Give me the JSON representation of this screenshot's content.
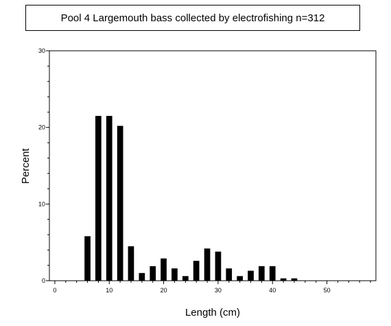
{
  "chart_data": {
    "type": "bar",
    "title": "Pool 4 Largemouth bass collected by electrofishing n=312",
    "xlabel": "Length (cm)",
    "ylabel": "Percent",
    "xlim": [
      -1,
      59
    ],
    "ylim": [
      0,
      30
    ],
    "x_ticks": [
      "0",
      "10",
      "20",
      "30",
      "40",
      "50"
    ],
    "y_ticks": [
      "0",
      "10",
      "20",
      "30"
    ],
    "x": [
      6,
      8,
      10,
      12,
      14,
      16,
      18,
      20,
      22,
      24,
      26,
      28,
      30,
      32,
      34,
      36,
      38,
      40,
      42,
      44
    ],
    "values": [
      5.8,
      21.5,
      21.5,
      20.2,
      4.5,
      1.0,
      1.9,
      2.9,
      1.6,
      0.6,
      2.6,
      4.2,
      3.8,
      1.6,
      0.6,
      1.3,
      1.9,
      1.9,
      0.3,
      0.3
    ],
    "color": "#000000",
    "grid": false,
    "legend": "none"
  }
}
